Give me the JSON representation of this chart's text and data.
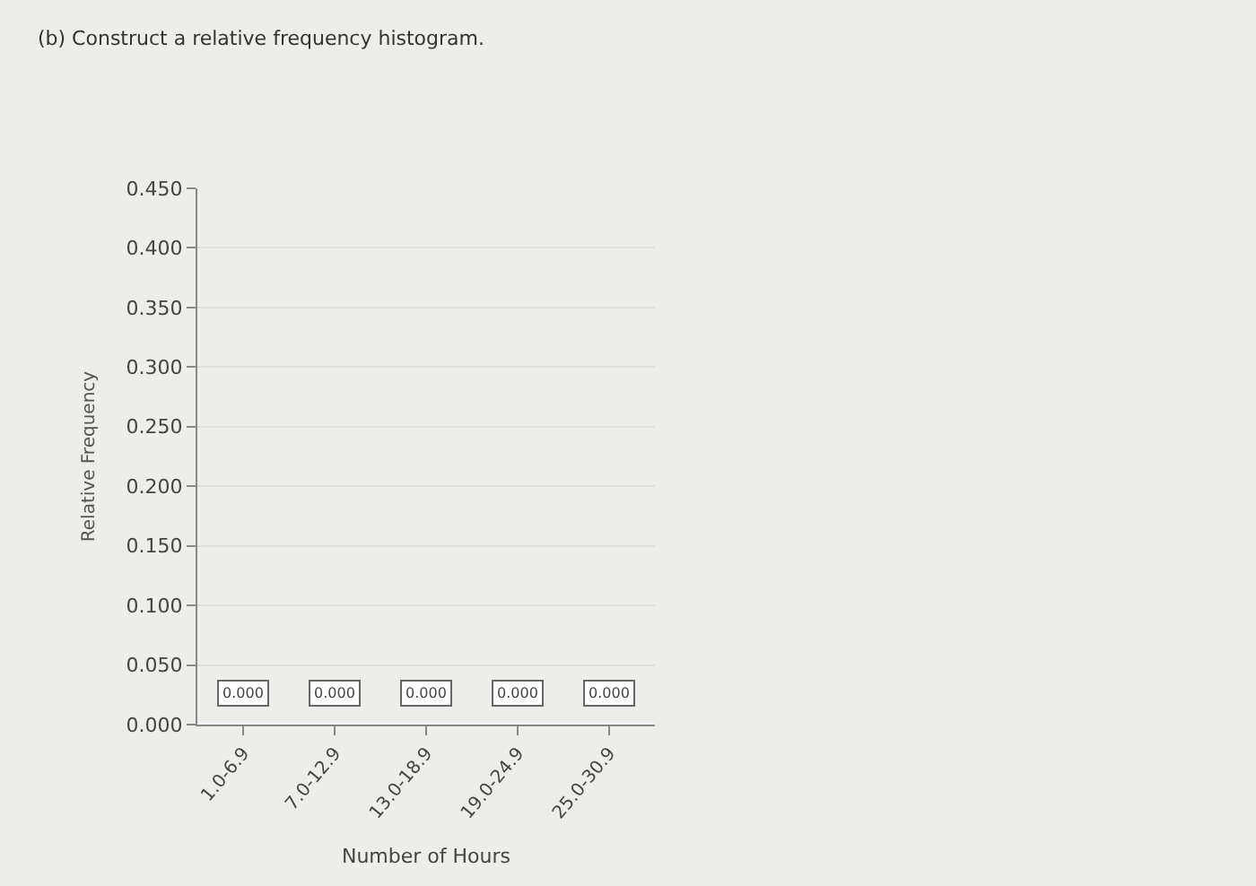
{
  "chart_data": {
    "type": "bar",
    "title": "(b) Construct a relative frequency histogram.",
    "xlabel": "Number of Hours",
    "ylabel": "Relative Frequency",
    "categories": [
      "1.0-6.9",
      "7.0-12.9",
      "13.0-18.9",
      "19.0-24.9",
      "25.0-30.9"
    ],
    "values": [
      0,
      0,
      0,
      0,
      0
    ],
    "value_labels": [
      "0.000",
      "0.000",
      "0.000",
      "0.000",
      "0.000"
    ],
    "ylim": [
      0,
      0.45
    ],
    "yticks": [
      {
        "value": 0,
        "label": "0.000"
      },
      {
        "value": 0.05,
        "label": "0.050"
      },
      {
        "value": 0.1,
        "label": "0.100"
      },
      {
        "value": 0.15,
        "label": "0.150"
      },
      {
        "value": 0.2,
        "label": "0.200"
      },
      {
        "value": 0.25,
        "label": "0.250"
      },
      {
        "value": 0.3,
        "label": "0.300"
      },
      {
        "value": 0.35,
        "label": "0.350"
      },
      {
        "value": 0.4,
        "label": "0.400"
      },
      {
        "value": 0.45,
        "label": "0.450"
      }
    ],
    "grid": "y",
    "legend": false
  }
}
